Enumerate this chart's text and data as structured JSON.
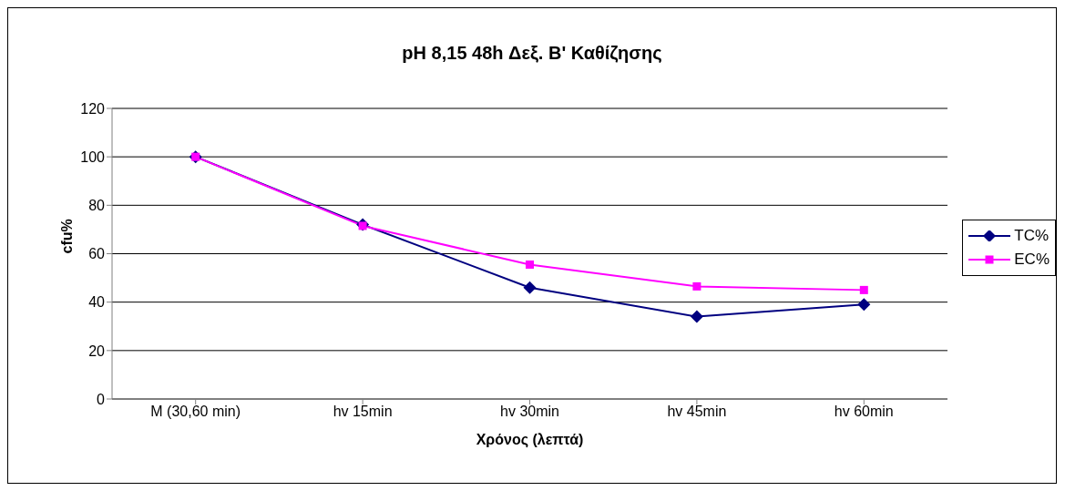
{
  "chart_data": {
    "type": "line",
    "title": "pH 8,15 48h Δεξ. Β' Καθίζησης",
    "xlabel": "Χρόνος (λεπτά)",
    "ylabel": "cfu%",
    "categories": [
      "M (30,60 min)",
      "hv 15min",
      "hv 30min",
      "hv 45min",
      "hv 60min"
    ],
    "series": [
      {
        "name": "TC%",
        "color": "#000080",
        "marker": "diamond",
        "values": [
          100,
          72,
          46,
          34,
          39
        ]
      },
      {
        "name": "EC%",
        "color": "#ff00ff",
        "marker": "square",
        "values": [
          100,
          71.5,
          55.5,
          46.5,
          45
        ]
      }
    ],
    "ylim": [
      0,
      120
    ],
    "yticks": [
      0,
      20,
      40,
      60,
      80,
      100,
      120
    ],
    "grid": "y",
    "legend": "right"
  }
}
